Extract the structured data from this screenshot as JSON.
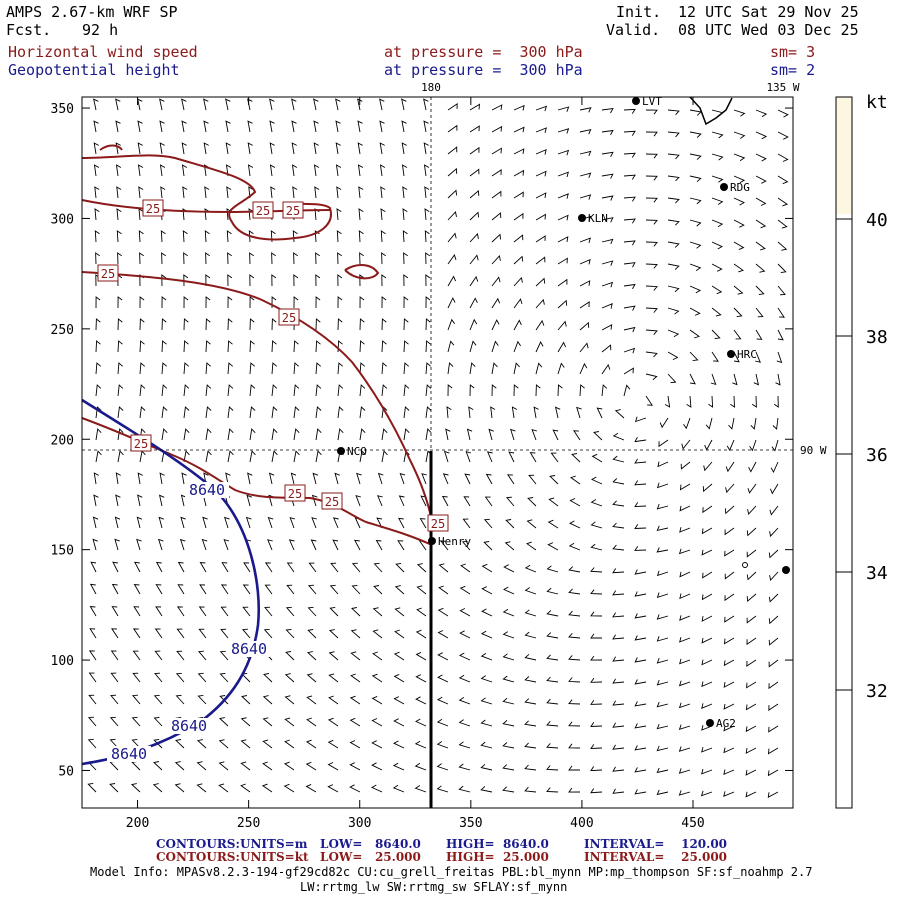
{
  "header": {
    "model": "AMPS 2.67-km WRF SP",
    "fcst_label": "Fcst.",
    "fcst_value": "92 h",
    "init_label": "Init.",
    "init_value": "12 UTC Sat 29 Nov 25",
    "valid_label": "Valid.",
    "valid_value": "08 UTC Wed 03 Dec 25"
  },
  "fields": [
    {
      "name": "Horizontal wind speed",
      "level": "at pressure =  300 hPa",
      "sm": "sm= 3",
      "color": "#8b1a1a"
    },
    {
      "name": "Geopotential height",
      "level": "at pressure =  300 hPa",
      "sm": "sm= 2",
      "color": "#1a1a8c"
    }
  ],
  "map": {
    "x_ticks": [
      "200",
      "250",
      "300",
      "350",
      "400",
      "450"
    ],
    "y_ticks": [
      "350",
      "300",
      "250",
      "200",
      "150",
      "100",
      "50"
    ],
    "top_labels": [
      "180",
      "135 W"
    ],
    "right_label": "90 W",
    "stations": [
      {
        "label": "LVT"
      },
      {
        "label": "RDG"
      },
      {
        "label": "KLN"
      },
      {
        "label": "HRC"
      },
      {
        "label": "NCO"
      },
      {
        "label": "Henry"
      },
      {
        "label": "AG2"
      }
    ],
    "wind_contour_labels": [
      "25",
      "25",
      "25",
      "25",
      "25",
      "25",
      "25",
      "25"
    ],
    "height_contour_labels": [
      "8640",
      "8640",
      "8640",
      "8640"
    ]
  },
  "colorbar": {
    "unit": "kt",
    "labels": [
      "40",
      "38",
      "36",
      "34",
      "32"
    ],
    "top_color": "#fdf6e0"
  },
  "footer": {
    "row1": {
      "prefix": "CONTOURS:",
      "units": "UNITS=m",
      "low": "LOW=   8640.0",
      "high": "HIGH=  8640.0",
      "interval": "INTERVAL=    120.00",
      "color": "#1a1a8c"
    },
    "row2": {
      "prefix": "CONTOURS:",
      "units": "UNITS=kt",
      "low": "LOW=   25.000",
      "high": "HIGH=  25.000",
      "interval": "INTERVAL=    25.000",
      "color": "#8b1a1a"
    },
    "model_info": "Model Info: MPASv8.2.3-194-gf29cd82c CU:cu_grell_freitas PBL:bl_mynn MP:mp_thompson SF:sf_noahmp 2.7",
    "physics": "LW:rrtmg_lw SW:rrtmg_sw SFLAY:sf_mynn"
  }
}
